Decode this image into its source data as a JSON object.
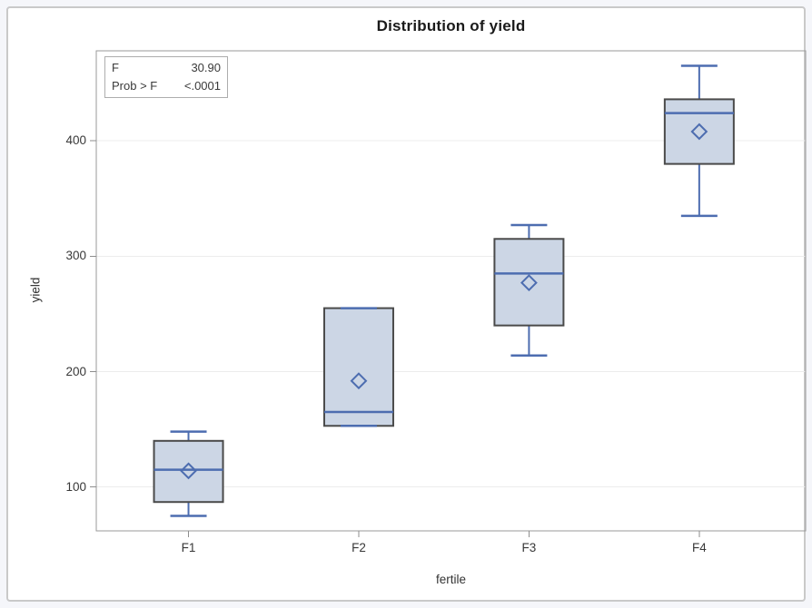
{
  "chart_data": {
    "type": "boxplot",
    "title": "Distribution of yield",
    "xlabel": "fertile",
    "ylabel": "yield",
    "categories": [
      "F1",
      "F2",
      "F3",
      "F4"
    ],
    "yticks": [
      100,
      200,
      300,
      400
    ],
    "ylim": [
      62,
      478
    ],
    "grid": "horizontal gridlines at y ticks",
    "legend": "none",
    "annotation": {
      "rows": [
        {
          "label": "F",
          "value": "30.90"
        },
        {
          "label": "Prob > F",
          "value": "<.0001"
        }
      ]
    },
    "series": [
      {
        "category": "F1",
        "min": 75,
        "q1": 87,
        "median": 115,
        "mean": 114,
        "q3": 140,
        "max": 148
      },
      {
        "category": "F2",
        "min": 153,
        "q1": 153,
        "median": 165,
        "mean": 192,
        "q3": 255,
        "max": 255
      },
      {
        "category": "F3",
        "min": 214,
        "q1": 240,
        "median": 285,
        "mean": 277,
        "q3": 315,
        "max": 327
      },
      {
        "category": "F4",
        "min": 335,
        "q1": 380,
        "median": 424,
        "mean": 408,
        "q3": 436,
        "max": 465
      }
    ],
    "colors": {
      "box_fill": "#ccd6e5",
      "box_border": "#4a4a4a",
      "line_blue": "#4d6db0",
      "gridline": "#ececec",
      "frame": "#9a9a9a",
      "tick": "#8e8e8e",
      "title_text": "#1a1a1a",
      "axis_text": "#333333",
      "figure_border": "#c9c9c9",
      "page_background": "#f5f6fa",
      "figure_background": "#ffffff"
    }
  }
}
